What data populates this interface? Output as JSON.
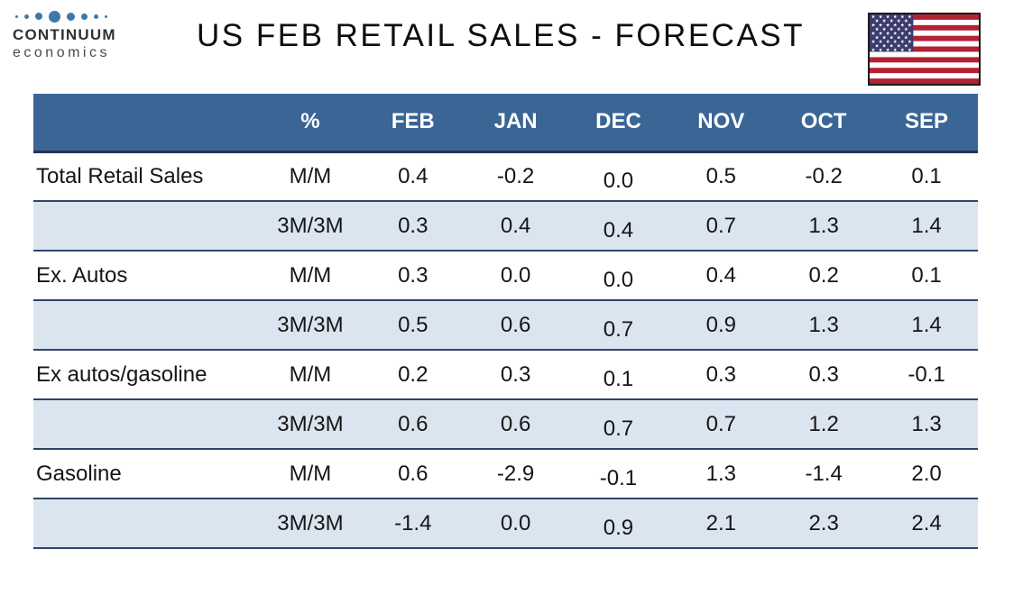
{
  "title": "US FEB RETAIL SALES - FORECAST",
  "logo": {
    "wordmark": "CONTINUUM",
    "subtitle": "economics",
    "dot_color": "#3c79ab",
    "dot_sizes": [
      3,
      5,
      8,
      13,
      9,
      7,
      5,
      3
    ]
  },
  "flag": {
    "stripe_red": "#B22234",
    "stripe_white": "#ffffff",
    "canton_blue": "#3C3B6E",
    "star_color": "#ffffff"
  },
  "colors": {
    "header_bg": "#3a6594",
    "header_text": "#ffffff",
    "band_bg": "#dbe5f0",
    "divider": "#2e4569",
    "dot_color": "#3c79ab"
  },
  "chart_data": {
    "type": "table",
    "title": "US FEB RETAIL SALES - FORECAST",
    "columns": [
      "",
      "%",
      "FEB",
      "JAN",
      "DEC",
      "NOV",
      "OCT",
      "SEP"
    ],
    "rows": [
      {
        "label": "Total Retail Sales",
        "measure": "M/M",
        "values": [
          "0.4",
          "-0.2",
          "0.0",
          "0.5",
          "-0.2",
          "0.1"
        ]
      },
      {
        "label": "",
        "measure": "3M/3M",
        "values": [
          "0.3",
          "0.4",
          "0.4",
          "0.7",
          "1.3",
          "1.4"
        ]
      },
      {
        "label": "Ex. Autos",
        "measure": "M/M",
        "values": [
          "0.3",
          "0.0",
          "0.0",
          "0.4",
          "0.2",
          "0.1"
        ]
      },
      {
        "label": "",
        "measure": "3M/3M",
        "values": [
          "0.5",
          "0.6",
          "0.7",
          "0.9",
          "1.3",
          "1.4"
        ]
      },
      {
        "label": "Ex autos/gasoline",
        "measure": "M/M",
        "values": [
          "0.2",
          "0.3",
          "0.1",
          "0.3",
          "0.3",
          "-0.1"
        ]
      },
      {
        "label": "",
        "measure": "3M/3M",
        "values": [
          "0.6",
          "0.6",
          "0.7",
          "0.7",
          "1.2",
          "1.3"
        ]
      },
      {
        "label": "Gasoline",
        "measure": "M/M",
        "values": [
          "0.6",
          "-2.9",
          "-0.1",
          "1.3",
          "-1.4",
          "2.0"
        ]
      },
      {
        "label": "",
        "measure": "3M/3M",
        "values": [
          "-1.4",
          "0.0",
          "0.9",
          "2.1",
          "2.3",
          "2.4"
        ]
      }
    ]
  }
}
